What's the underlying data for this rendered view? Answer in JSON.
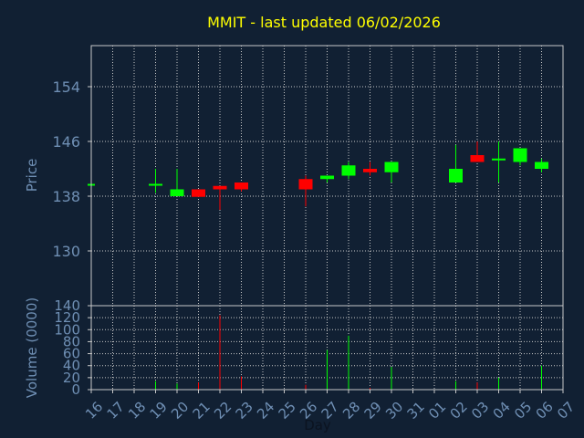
{
  "title": "MMIT - last updated 06/02/2026",
  "colors": {
    "background": "#112033",
    "title": "#ffff00",
    "axis_text": "#6f8fb4",
    "grid": "#c8c8c8",
    "frame": "#c8c8c8",
    "up": "#00ff00",
    "down": "#ff0000",
    "neutral": "#00ff00"
  },
  "chart_data": [
    {
      "type": "candlestick",
      "ylabel": "Price",
      "ylim": [
        122,
        160
      ],
      "yticks": [
        "154",
        "146",
        "138",
        "130"
      ],
      "ytick_values": [
        154,
        146,
        138,
        130
      ],
      "grid": true,
      "x_categories": [
        "16",
        "17",
        "18",
        "19",
        "20",
        "21",
        "22",
        "23",
        "24",
        "25",
        "26",
        "27",
        "28",
        "29",
        "30",
        "31",
        "01",
        "02",
        "03",
        "04",
        "05",
        "06",
        "07"
      ],
      "candles": [
        {
          "x": "16",
          "open": 139.8,
          "high": 139.8,
          "low": 139.8,
          "close": 139.8
        },
        {
          "x": "19",
          "open": 139.8,
          "high": 142.0,
          "low": 138.5,
          "close": 139.8
        },
        {
          "x": "20",
          "open": 138.0,
          "high": 142.0,
          "low": 138.0,
          "close": 139.0
        },
        {
          "x": "21",
          "open": 139.0,
          "high": 139.0,
          "low": 137.9,
          "close": 137.9
        },
        {
          "x": "22",
          "open": 139.5,
          "high": 139.5,
          "low": 136.0,
          "close": 139.0
        },
        {
          "x": "23",
          "open": 140.0,
          "high": 140.0,
          "low": 138.7,
          "close": 139.0
        },
        {
          "x": "26",
          "open": 140.5,
          "high": 141.0,
          "low": 136.5,
          "close": 139.0
        },
        {
          "x": "27",
          "open": 140.5,
          "high": 141.0,
          "low": 140.0,
          "close": 141.0
        },
        {
          "x": "28",
          "open": 141.0,
          "high": 143.0,
          "low": 140.5,
          "close": 142.5
        },
        {
          "x": "29",
          "open": 142.0,
          "high": 143.0,
          "low": 141.0,
          "close": 141.5
        },
        {
          "x": "30",
          "open": 141.5,
          "high": 143.0,
          "low": 140.0,
          "close": 143.0
        },
        {
          "x": "02",
          "open": 140.0,
          "high": 145.5,
          "low": 140.0,
          "close": 142.0
        },
        {
          "x": "03",
          "open": 144.0,
          "high": 146.0,
          "low": 143.0,
          "close": 143.0
        },
        {
          "x": "04",
          "open": 143.5,
          "high": 146.0,
          "low": 140.0,
          "close": 143.5
        },
        {
          "x": "05",
          "open": 143.0,
          "high": 145.0,
          "low": 142.5,
          "close": 145.0
        },
        {
          "x": "06",
          "open": 142.0,
          "high": 143.5,
          "low": 141.5,
          "close": 143.0
        }
      ]
    },
    {
      "type": "bar",
      "ylabel": "Volume (0000)",
      "xlabel": "Day",
      "ylim": [
        0,
        140
      ],
      "yticks": [
        "140",
        "120",
        "100",
        "80",
        "60",
        "40",
        "20",
        "0"
      ],
      "ytick_values": [
        140,
        120,
        100,
        80,
        60,
        40,
        20,
        0
      ],
      "grid": true,
      "x_categories": [
        "16",
        "17",
        "18",
        "19",
        "20",
        "21",
        "22",
        "23",
        "24",
        "25",
        "26",
        "27",
        "28",
        "29",
        "30",
        "31",
        "01",
        "02",
        "03",
        "04",
        "05",
        "06",
        "07"
      ],
      "volumes": [
        {
          "x": "19",
          "value": 14,
          "color": "#00ff00"
        },
        {
          "x": "20",
          "value": 10,
          "color": "#00ff00"
        },
        {
          "x": "21",
          "value": 12,
          "color": "#ff0000"
        },
        {
          "x": "22",
          "value": 124,
          "color": "#ff0000"
        },
        {
          "x": "23",
          "value": 22,
          "color": "#ff0000"
        },
        {
          "x": "26",
          "value": 8,
          "color": "#ff0000"
        },
        {
          "x": "27",
          "value": 66,
          "color": "#00ff00"
        },
        {
          "x": "28",
          "value": 90,
          "color": "#00ff00"
        },
        {
          "x": "29",
          "value": 3,
          "color": "#ff0000"
        },
        {
          "x": "30",
          "value": 38,
          "color": "#00ff00"
        },
        {
          "x": "02",
          "value": 14,
          "color": "#00ff00"
        },
        {
          "x": "03",
          "value": 12,
          "color": "#ff0000"
        },
        {
          "x": "04",
          "value": 20,
          "color": "#00ff00"
        },
        {
          "x": "06",
          "value": 40,
          "color": "#00ff00"
        }
      ]
    }
  ]
}
